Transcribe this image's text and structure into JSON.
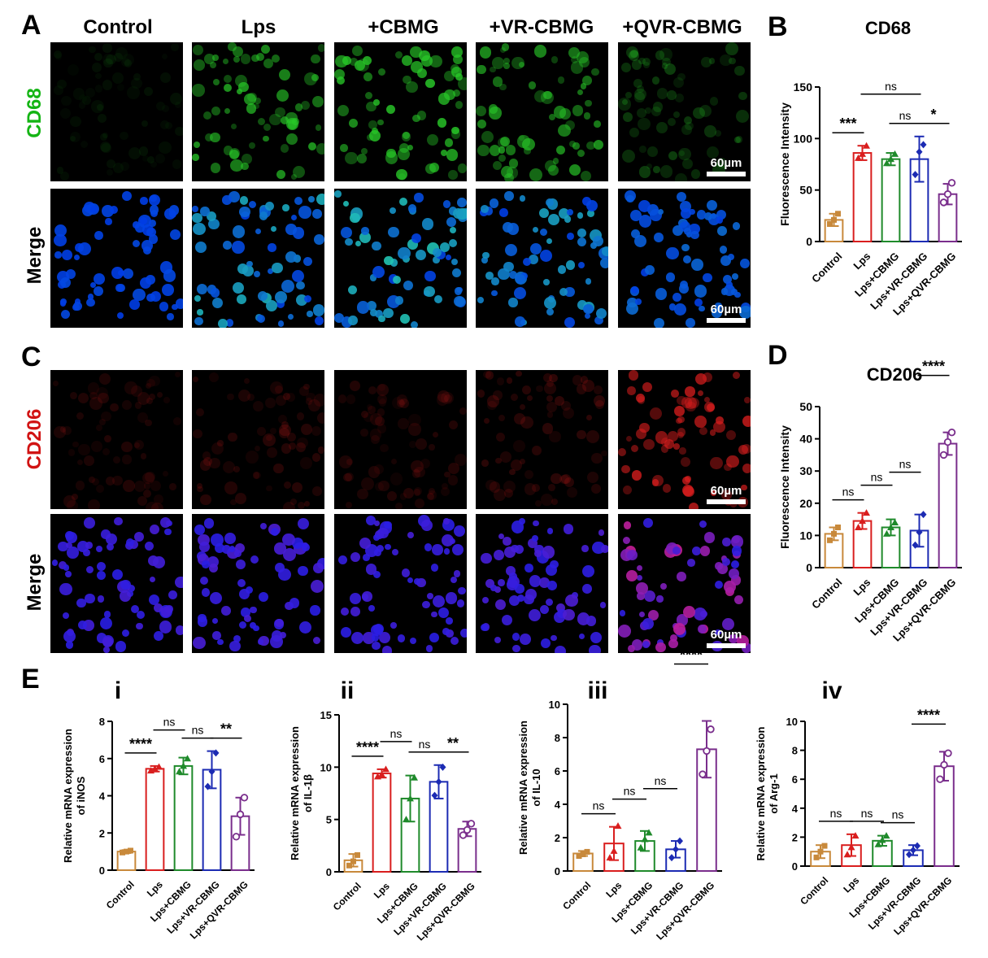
{
  "panel_labels": {
    "A": "A",
    "B": "B",
    "C": "C",
    "D": "D",
    "E": "E"
  },
  "column_headers": [
    "Control",
    "Lps",
    "+CBMG",
    "+VR-CBMG",
    "+QVR-CBMG"
  ],
  "row_labels": {
    "cd68": "CD68",
    "merge1": "Merge",
    "cd206": "CD206",
    "merge2": "Merge"
  },
  "scale_bar": "60µm",
  "colors": {
    "control": "#c8893b",
    "lps": "#d91e1e",
    "cbmg": "#1f8a2b",
    "vr": "#1c2bb3",
    "qvr": "#7a2e8c",
    "cd68": "#14b414",
    "cd206": "#d11313"
  },
  "chart_data": [
    {
      "id": "B",
      "type": "bar",
      "title": "CD68",
      "ylabel": "Fluorescence Intensity",
      "ylim": [
        0,
        150
      ],
      "yticks": [
        0,
        50,
        100,
        150
      ],
      "categories": [
        "Control",
        "Lps",
        "Lps+CBMG",
        "Lps+VR-CBMG",
        "Lps+QVR-CBMG"
      ],
      "values": [
        21,
        86,
        80,
        80,
        46
      ],
      "errors": [
        6,
        7,
        6,
        22,
        10
      ],
      "points": [
        [
          17,
          21,
          27
        ],
        [
          81,
          85,
          93
        ],
        [
          76,
          80,
          85
        ],
        [
          65,
          87,
          94
        ],
        [
          38,
          46,
          57
        ]
      ],
      "sig": [
        {
          "a": 0,
          "b": 1,
          "label": "***",
          "level": 0
        },
        {
          "a": 1,
          "b": 3,
          "label": "ns",
          "level": 2
        },
        {
          "a": 2,
          "b": 3,
          "label": "ns",
          "level": 0
        },
        {
          "a": 3,
          "b": 4,
          "label": "*",
          "level": 0
        }
      ]
    },
    {
      "id": "D",
      "type": "bar",
      "title": "CD206",
      "ylabel": "Fluorescence Intensity",
      "ylim": [
        0,
        50
      ],
      "yticks": [
        0,
        10,
        20,
        30,
        40,
        50
      ],
      "categories": [
        "Control",
        "Lps",
        "Lps+CBMG",
        "Lps+VR-CBMG",
        "Lps+QVR-CBMG"
      ],
      "values": [
        10.5,
        14.5,
        12.5,
        11.5,
        38.5
      ],
      "errors": [
        2,
        2.5,
        2.5,
        5,
        3.5
      ],
      "points": [
        [
          8.5,
          10.5,
          12.5
        ],
        [
          12.5,
          14.5,
          17
        ],
        [
          10.5,
          12.5,
          14
        ],
        [
          7,
          11,
          16.5
        ],
        [
          35,
          39,
          42
        ]
      ],
      "sig": [
        {
          "a": 0,
          "b": 1,
          "label": "ns",
          "level": 0
        },
        {
          "a": 1,
          "b": 2,
          "label": "ns",
          "level": 1
        },
        {
          "a": 2,
          "b": 3,
          "label": "ns",
          "level": 2
        },
        {
          "a": 3,
          "b": 4,
          "label": "****",
          "level": 3
        }
      ]
    },
    {
      "id": "Ei",
      "type": "bar",
      "title": "i",
      "ylabel": "Relative mRNA expression of iNOS",
      "ylim": [
        0,
        8
      ],
      "yticks": [
        0,
        2,
        4,
        6,
        8
      ],
      "categories": [
        "Control",
        "Lps",
        "Lps+CBMG",
        "Lps+VR-CBMG",
        "Lps+QVR-CBMG"
      ],
      "values": [
        1,
        5.45,
        5.6,
        5.4,
        2.9
      ],
      "errors": [
        0.08,
        0.15,
        0.45,
        1,
        1
      ],
      "points": [
        [
          0.95,
          1,
          1.05
        ],
        [
          5.35,
          5.45,
          5.55
        ],
        [
          5.3,
          5.6,
          6
        ],
        [
          4.5,
          5.3,
          6.3
        ],
        [
          1.8,
          3,
          3.9
        ]
      ],
      "sig": [
        {
          "a": 0,
          "b": 1,
          "label": "****",
          "level": 0
        },
        {
          "a": 1,
          "b": 2,
          "label": "ns",
          "level": 1
        },
        {
          "a": 2,
          "b": 3,
          "label": "ns",
          "level": 0
        },
        {
          "a": 3,
          "b": 4,
          "label": "**",
          "level": 0
        }
      ]
    },
    {
      "id": "Eii",
      "type": "bar",
      "title": "ii",
      "ylabel": "Relative mRNA expression of IL-1β",
      "ylim": [
        0,
        15
      ],
      "yticks": [
        0,
        5,
        10,
        15
      ],
      "categories": [
        "Control",
        "Lps",
        "Lps+CBMG",
        "Lps+VR-CBMG",
        "Lps+QVR-CBMG"
      ],
      "values": [
        1.1,
        9.4,
        7,
        8.6,
        4.1
      ],
      "errors": [
        0.6,
        0.4,
        2.2,
        1.6,
        0.7
      ],
      "points": [
        [
          0.6,
          1,
          1.6
        ],
        [
          9.1,
          9.3,
          9.8
        ],
        [
          5,
          7,
          9
        ],
        [
          7.3,
          8.6,
          10
        ],
        [
          3.5,
          4,
          4.6
        ]
      ],
      "sig": [
        {
          "a": 0,
          "b": 1,
          "label": "****",
          "level": 0
        },
        {
          "a": 1,
          "b": 2,
          "label": "ns",
          "level": 1
        },
        {
          "a": 2,
          "b": 3,
          "label": "ns",
          "level": 0
        },
        {
          "a": 3,
          "b": 4,
          "label": "**",
          "level": 0
        }
      ]
    },
    {
      "id": "Eiii",
      "type": "bar",
      "title": "iii",
      "ylabel": "Relative mRNA expression of IL-10",
      "ylim": [
        0,
        10
      ],
      "yticks": [
        0,
        2,
        4,
        6,
        8,
        10
      ],
      "categories": [
        "Control",
        "Lps",
        "Lps+CBMG",
        "Lps+VR-CBMG",
        "Lps+QVR-CBMG"
      ],
      "values": [
        1.05,
        1.65,
        1.8,
        1.3,
        7.3
      ],
      "errors": [
        0.15,
        1,
        0.6,
        0.5,
        1.7
      ],
      "points": [
        [
          0.9,
          1,
          1.15
        ],
        [
          0.8,
          1.2,
          2.7
        ],
        [
          1.4,
          1.9,
          2.3
        ],
        [
          0.8,
          1.3,
          1.8
        ],
        [
          5.8,
          7.2,
          8.5
        ]
      ],
      "sig": [
        {
          "a": 0,
          "b": 1,
          "label": "ns",
          "level": 0
        },
        {
          "a": 1,
          "b": 2,
          "label": "ns",
          "level": 1
        },
        {
          "a": 2,
          "b": 3,
          "label": "ns",
          "level": 2
        },
        {
          "a": 3,
          "b": 4,
          "label": "****",
          "level": 3
        }
      ]
    },
    {
      "id": "Eiv",
      "type": "bar",
      "title": "iv",
      "ylabel": "Relative mRNA expression of Arg-1",
      "ylim": [
        0,
        10
      ],
      "yticks": [
        0,
        2,
        4,
        6,
        8,
        10
      ],
      "categories": [
        "Control",
        "Lps",
        "Lps+CBMG",
        "Lps+VR-CBMG",
        "Lps+QVR-CBMG"
      ],
      "values": [
        1,
        1.45,
        1.75,
        1.1,
        6.9
      ],
      "errors": [
        0.45,
        0.75,
        0.35,
        0.35,
        1
      ],
      "points": [
        [
          0.6,
          1,
          1.4
        ],
        [
          0.8,
          1.3,
          2.1
        ],
        [
          1.5,
          1.8,
          2.1
        ],
        [
          0.8,
          1.1,
          1.4
        ],
        [
          6,
          7,
          7.8
        ]
      ],
      "sig": [
        {
          "a": 0,
          "b": 1,
          "label": "ns",
          "level": 0
        },
        {
          "a": 1,
          "b": 2,
          "label": "ns",
          "level": 0
        },
        {
          "a": 2,
          "b": 3,
          "label": "ns",
          "level": 0
        },
        {
          "a": 3,
          "b": 4,
          "label": "****",
          "level": 1
        }
      ]
    }
  ]
}
